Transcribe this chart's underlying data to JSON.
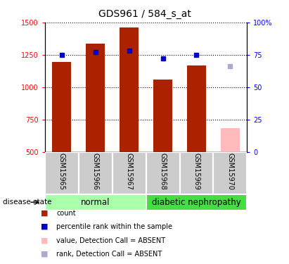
{
  "title": "GDS961 / 584_s_at",
  "samples": [
    "GSM15965",
    "GSM15966",
    "GSM15967",
    "GSM15968",
    "GSM15969",
    "GSM15970"
  ],
  "bar_values": [
    1195,
    1335,
    1460,
    1060,
    1165,
    685
  ],
  "bar_colors": [
    "#aa2200",
    "#aa2200",
    "#aa2200",
    "#aa2200",
    "#aa2200",
    "#ffbbbb"
  ],
  "rank_right": [
    75,
    77,
    78,
    72,
    75,
    66
  ],
  "rank_is_absent": [
    false,
    false,
    false,
    false,
    false,
    true
  ],
  "ylim_left": [
    500,
    1500
  ],
  "ylim_right": [
    0,
    100
  ],
  "yticks_left": [
    500,
    750,
    1000,
    1250,
    1500
  ],
  "ytick_left_labels": [
    "500",
    "750",
    "1000",
    "1250",
    "1500"
  ],
  "yticks_right": [
    0,
    25,
    50,
    75,
    100
  ],
  "ytick_right_labels": [
    "0",
    "25",
    "50",
    "75",
    "100%"
  ],
  "normal_color": "#aaffaa",
  "diabetic_color": "#44dd44",
  "label_bg_color": "#cccccc",
  "count_color": "#aa2200",
  "rank_color": "#0000cc",
  "absent_val_color": "#ffbbbb",
  "absent_rank_color": "#aaaacc"
}
